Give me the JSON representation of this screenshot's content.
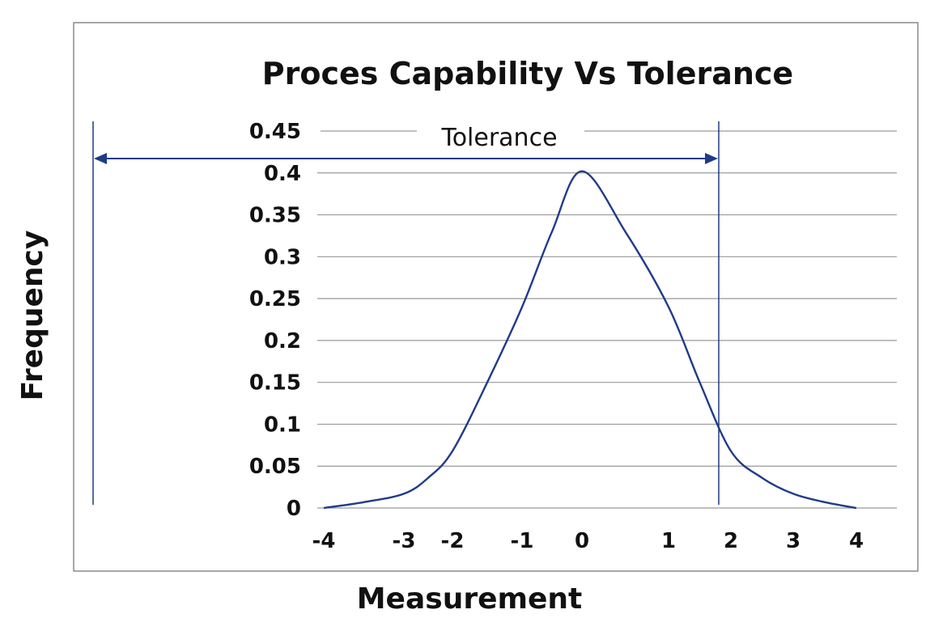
{
  "chart_data": {
    "type": "line",
    "title": "Proces Capability Vs Tolerance",
    "xlabel": "Measurement",
    "ylabel": "Frequency",
    "ylim": [
      0,
      0.45
    ],
    "yticks": [
      {
        "value": 0,
        "label": "0"
      },
      {
        "value": 0.05,
        "label": "0.05"
      },
      {
        "value": 0.1,
        "label": "0.1"
      },
      {
        "value": 0.15,
        "label": "0.15"
      },
      {
        "value": 0.2,
        "label": "0.2"
      },
      {
        "value": 0.25,
        "label": "0.25"
      },
      {
        "value": 0.3,
        "label": "0.3"
      },
      {
        "value": 0.35,
        "label": "0.35"
      },
      {
        "value": 0.4,
        "label": "0.4"
      },
      {
        "value": 0.45,
        "label": "0.45"
      }
    ],
    "xticks": [
      {
        "value": -4,
        "label": "-4"
      },
      {
        "value": -3,
        "label": "-3"
      },
      {
        "value": -2,
        "label": "-2"
      },
      {
        "value": -1,
        "label": "-1"
      },
      {
        "value": 0,
        "label": "0"
      },
      {
        "value": 1,
        "label": "1"
      },
      {
        "value": 2,
        "label": "2"
      },
      {
        "value": 3,
        "label": "3"
      },
      {
        "value": 4,
        "label": "4"
      }
    ],
    "grid": "horizontal",
    "series": [
      {
        "color": "#1f3c88",
        "x": [
          -4.0,
          -3.5,
          -3.0,
          -2.5,
          -2.0,
          -1.5,
          -1.0,
          -0.5,
          0.0,
          0.5,
          1.0,
          1.5,
          2.0,
          2.5,
          3.0,
          3.5,
          4.0
        ],
        "y": [
          0.0,
          0.007,
          0.017,
          0.036,
          0.068,
          0.15,
          0.24,
          0.33,
          0.402,
          0.33,
          0.24,
          0.15,
          0.068,
          0.036,
          0.017,
          0.007,
          0.0
        ]
      }
    ],
    "annotations": [
      {
        "text": "Tolerance",
        "type": "double-arrow",
        "color": "#1f3c88"
      }
    ]
  }
}
